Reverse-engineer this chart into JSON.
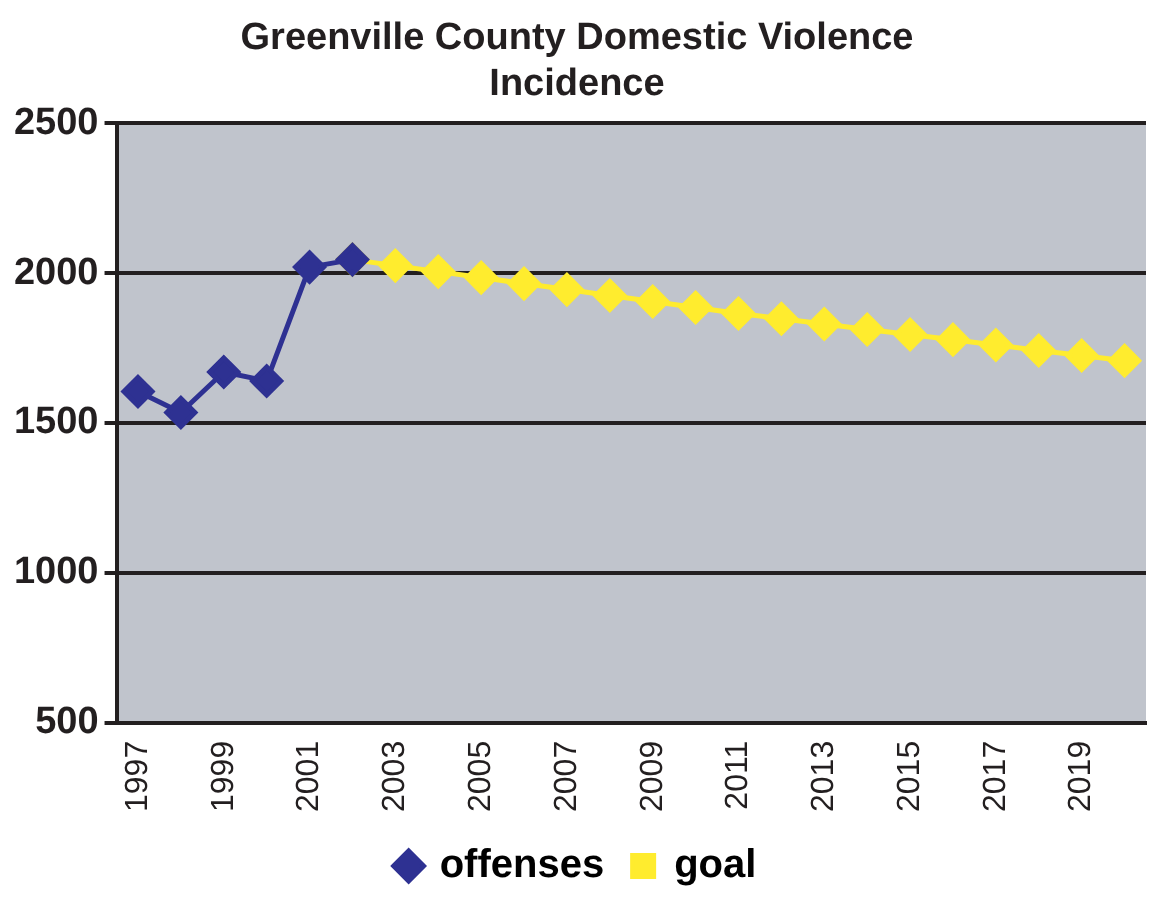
{
  "chart_data": {
    "type": "line",
    "title": "Greenville County Domestic Violence Incidence",
    "categories": [
      "1997",
      null,
      "1999",
      null,
      "2001",
      null,
      "2003",
      null,
      "2005",
      null,
      "2007",
      null,
      "2009",
      null,
      "2011",
      null,
      "2013",
      null,
      "2015",
      null,
      "2017",
      null,
      "2019",
      null
    ],
    "series": [
      {
        "name": "offenses",
        "color": "#2e3192",
        "values": [
          1605,
          1535,
          1670,
          1640,
          2020,
          2045,
          null,
          null,
          null,
          null,
          null,
          null,
          null,
          null,
          null,
          null,
          null,
          null,
          null,
          null,
          null,
          null,
          null,
          null
        ]
      },
      {
        "name": "goal",
        "color": "#ffec2e",
        "values": [
          null,
          null,
          null,
          null,
          null,
          2045,
          2025,
          2005,
          1985,
          1965,
          1945,
          1925,
          1905,
          1885,
          1865,
          1848,
          1830,
          1812,
          1795,
          1778,
          1760,
          1742,
          1725,
          1708
        ]
      }
    ],
    "ylim": [
      500,
      2500
    ],
    "yticks": [
      500,
      1000,
      1500,
      2000,
      2500
    ],
    "grid": "y",
    "legend": "bottom",
    "marker": "diamond",
    "line_style": "solid"
  }
}
